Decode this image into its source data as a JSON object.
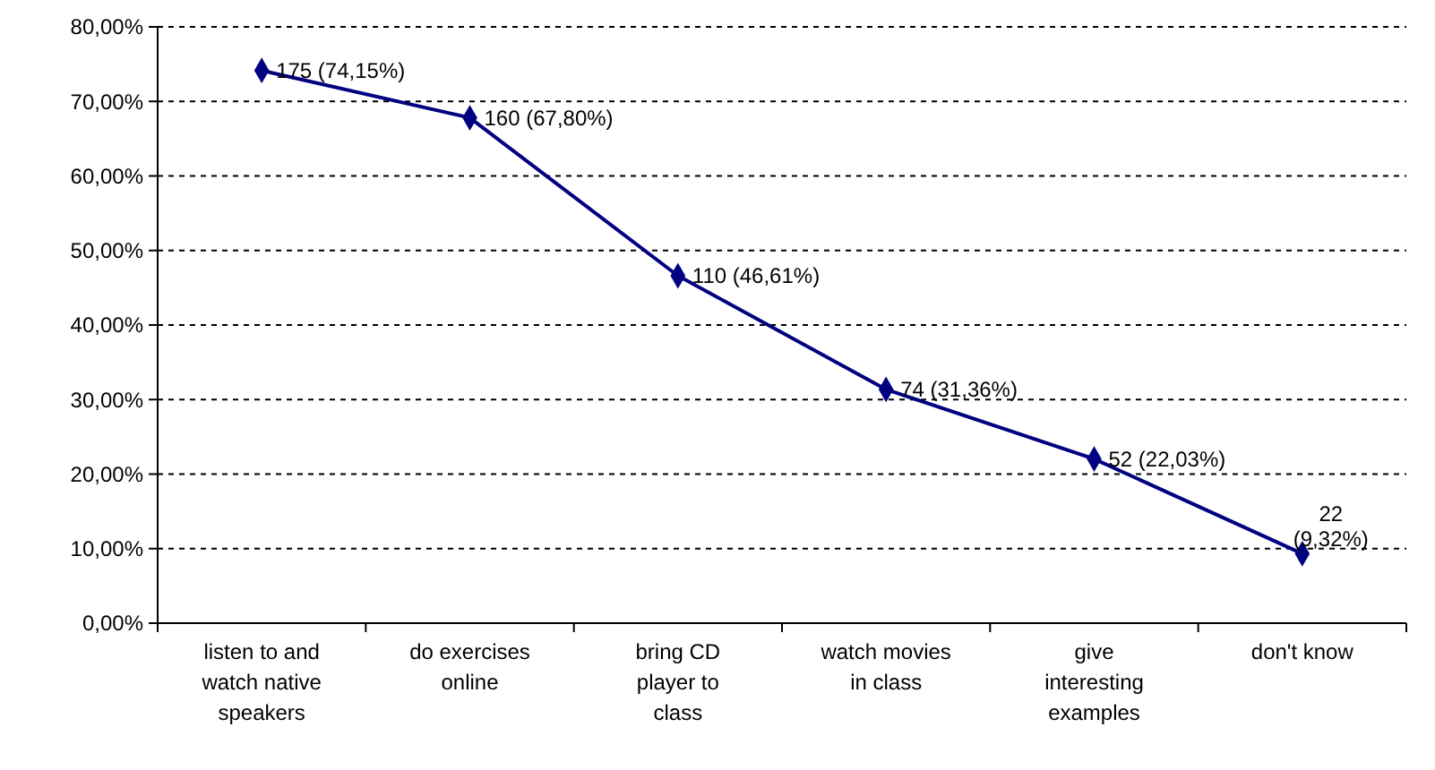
{
  "chart_data": {
    "type": "line",
    "categories": [
      "listen to and watch native speakers",
      "do exercises online",
      "bring CD player to class",
      "watch movies in class",
      "give interesting examples",
      "don't know"
    ],
    "series": [
      {
        "color": "#000080",
        "values": [
          74.15,
          67.8,
          46.61,
          31.36,
          22.03,
          9.32
        ],
        "value_labels": [
          "175 (74,15%)",
          "160 (67,80%)",
          "110 (46,61%)",
          "74 (31,36%)",
          "52 (22,03%)",
          "22 (9,32%)"
        ]
      }
    ],
    "ylim": [
      0,
      80
    ],
    "yticks": [
      {
        "value": 0,
        "label": "0,00%"
      },
      {
        "value": 10,
        "label": "10,00%"
      },
      {
        "value": 20,
        "label": "20,00%"
      },
      {
        "value": 30,
        "label": "30,00%"
      },
      {
        "value": 40,
        "label": "40,00%"
      },
      {
        "value": 50,
        "label": "50,00%"
      },
      {
        "value": 60,
        "label": "60,00%"
      },
      {
        "value": 70,
        "label": "70,00%"
      },
      {
        "value": 80,
        "label": "80,00%"
      }
    ],
    "grid": "y",
    "marker": "diamond",
    "line_style": "solid"
  }
}
